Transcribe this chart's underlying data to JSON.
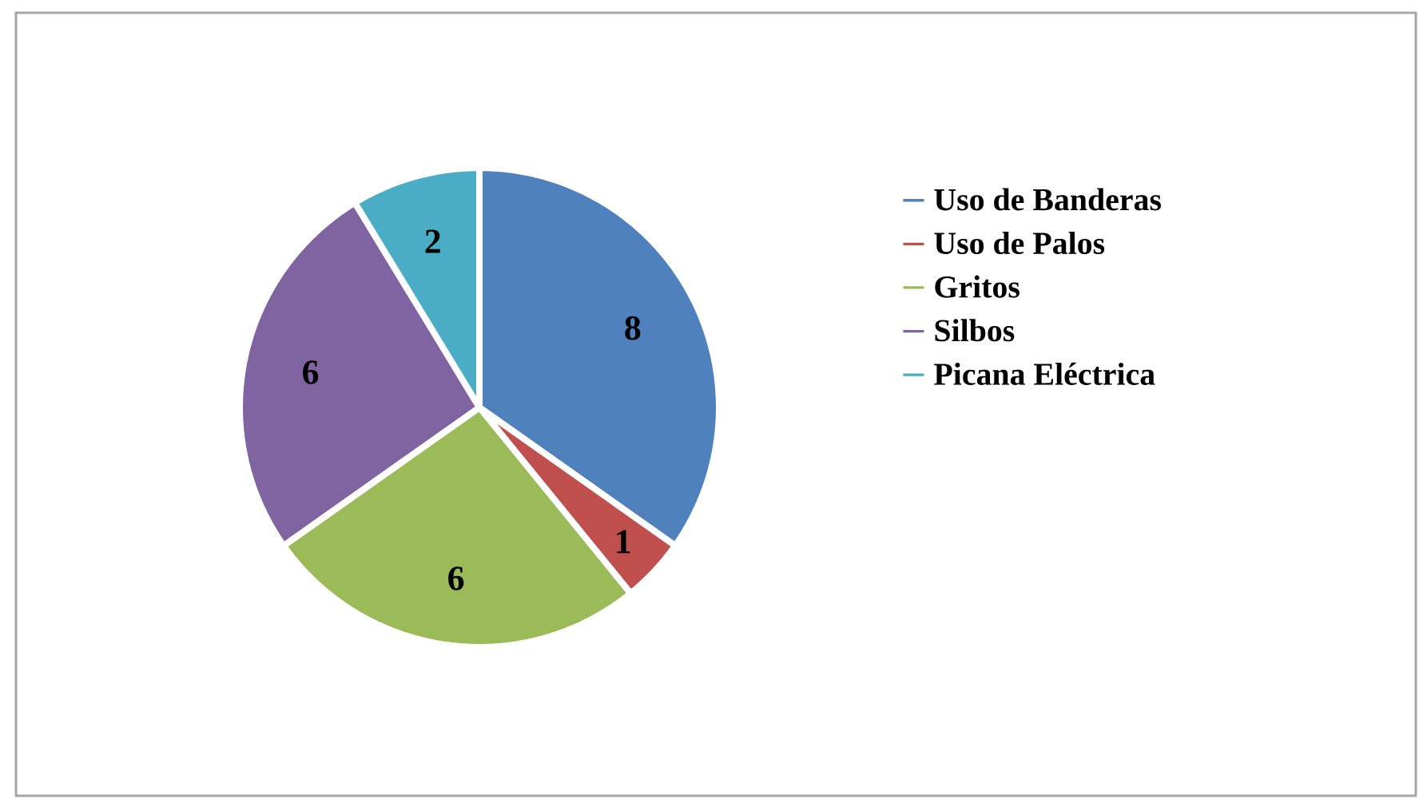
{
  "chart_data": {
    "type": "pie",
    "categories": [
      "Uso de Banderas",
      "Uso de Palos",
      "Gritos",
      "Silbos",
      "Picana Eléctrica"
    ],
    "values": [
      8,
      1,
      6,
      6,
      2
    ],
    "colors": [
      "#4f81bd",
      "#c0504d",
      "#9bbb59",
      "#8064a2",
      "#4bacc6"
    ],
    "data_labels": true,
    "legend": "right"
  }
}
